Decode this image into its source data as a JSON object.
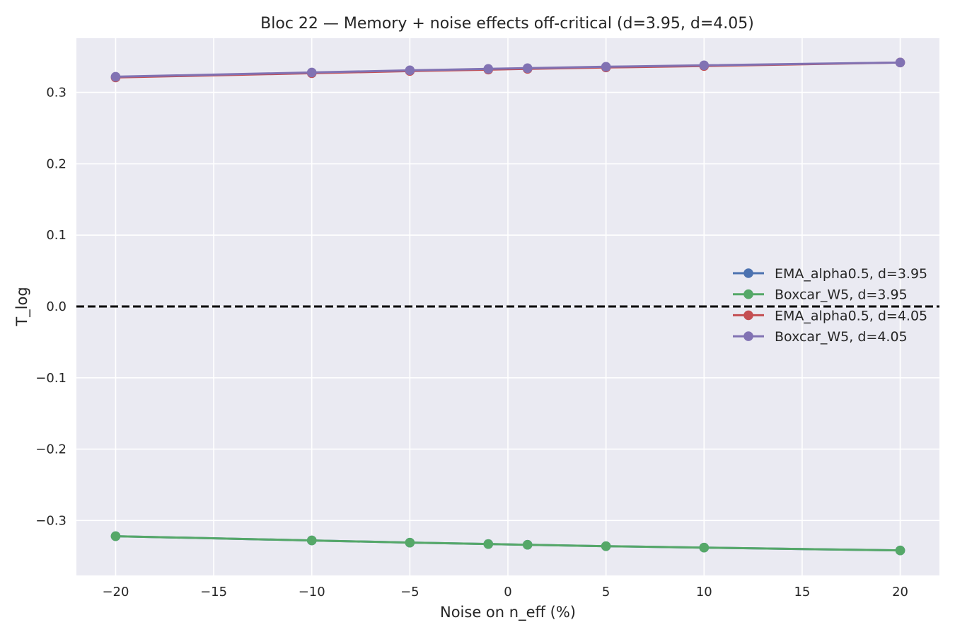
{
  "chart_data": {
    "type": "line",
    "title": "Bloc 22 — Memory + noise effects off-critical (d=3.95, d=4.05)",
    "xlabel": "Noise on n_eff (%)",
    "ylabel": "T_log",
    "xlim": [
      -22,
      22
    ],
    "ylim": [
      -0.377,
      0.376
    ],
    "xticks": [
      -20,
      -15,
      -10,
      -5,
      0,
      5,
      10,
      15,
      20
    ],
    "xtick_labels": [
      "−20",
      "−15",
      "−10",
      "−5",
      "0",
      "5",
      "10",
      "15",
      "20"
    ],
    "yticks": [
      -0.3,
      -0.2,
      -0.1,
      0.0,
      0.1,
      0.2,
      0.3
    ],
    "ytick_labels": [
      "−0.3",
      "−0.2",
      "−0.1",
      "0.0",
      "0.1",
      "0.2",
      "0.3"
    ],
    "grid": true,
    "legend_position": "center-right",
    "reference_line": {
      "y": 0,
      "style": "dashed",
      "color": "#000000"
    },
    "x": [
      -20,
      -10,
      -5,
      -1,
      1,
      5,
      10,
      20
    ],
    "series": [
      {
        "name": "EMA_alpha0.5, d=3.95",
        "color": "#4c72b0",
        "values": [
          -0.322,
          -0.328,
          -0.331,
          -0.333,
          -0.334,
          -0.336,
          -0.338,
          -0.342
        ]
      },
      {
        "name": "Boxcar_W5, d=3.95",
        "color": "#55a868",
        "values": [
          -0.322,
          -0.328,
          -0.331,
          -0.333,
          -0.334,
          -0.336,
          -0.338,
          -0.342
        ]
      },
      {
        "name": "EMA_alpha0.5, d=4.05",
        "color": "#c44e52",
        "values": [
          0.321,
          0.327,
          0.33,
          0.332,
          0.333,
          0.335,
          0.337,
          0.342
        ]
      },
      {
        "name": "Boxcar_W5, d=4.05",
        "color": "#8172b3",
        "values": [
          0.322,
          0.328,
          0.331,
          0.333,
          0.334,
          0.336,
          0.338,
          0.342
        ]
      }
    ]
  }
}
